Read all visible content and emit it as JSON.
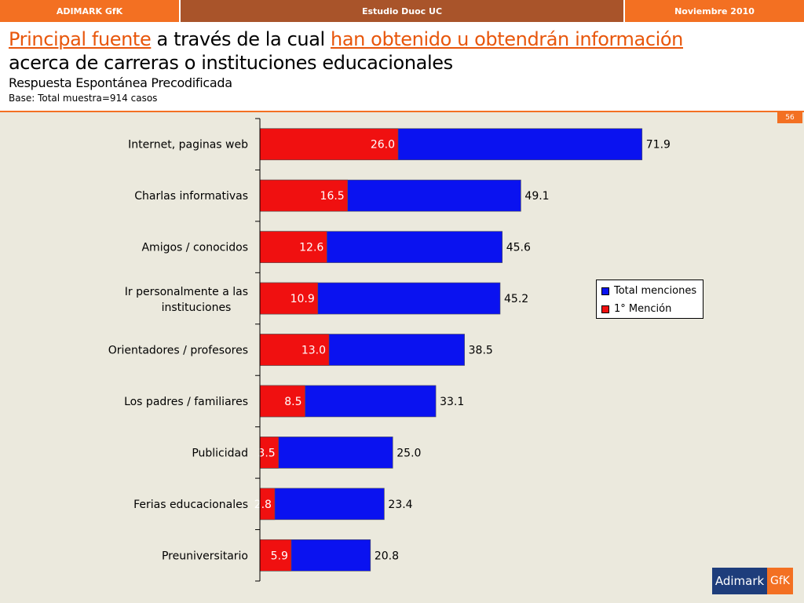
{
  "topbar": {
    "left": "ADIMARK GfK",
    "center": "Estudio Duoc UC",
    "right": "Noviembre 2010"
  },
  "header": {
    "title_part1": "Principal fuente",
    "title_part2": " a través de la cual ",
    "title_part3": "han obtenido u obtendrán información",
    "title_line2": "acerca de carreras o instituciones educacionales",
    "subtitle": "Respuesta Espontánea Precodificada",
    "base": "Base: Total muestra=914 casos"
  },
  "page_number": "56",
  "logo": {
    "left": "Adimark",
    "right": "GfK"
  },
  "colors": {
    "total": "#0a12f0",
    "first": "#f01010",
    "accent": "#f37022",
    "topbar": "#a9542a",
    "background": "#ebe9dd"
  },
  "chart_data": {
    "type": "bar",
    "orientation": "horizontal",
    "categories": [
      "Internet, paginas web",
      "Charlas informativas",
      "Amigos / conocidos",
      "Ir personalmente a las instituciones",
      "Orientadores / profesores",
      "Los padres / familiares",
      "Publicidad",
      "Ferias educacionales",
      "Preuniversitario"
    ],
    "series": [
      {
        "name": "Total menciones",
        "values": [
          71.9,
          49.1,
          45.6,
          45.2,
          38.5,
          33.1,
          25.0,
          23.4,
          20.8
        ]
      },
      {
        "name": "1° Mención",
        "values": [
          26.0,
          16.5,
          12.6,
          10.9,
          13.0,
          8.5,
          3.5,
          2.8,
          5.9
        ]
      }
    ],
    "overlay": true,
    "xlim": [
      0,
      100
    ],
    "grid": false,
    "legend": "right"
  }
}
